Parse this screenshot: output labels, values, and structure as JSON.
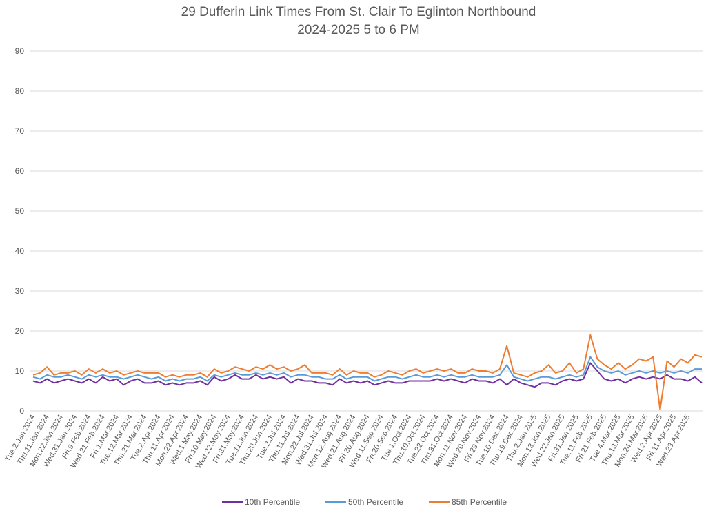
{
  "chart_data": {
    "type": "line",
    "title": "29 Dufferin Link Times From St. Clair To Eglinton Northbound",
    "subtitle": "2024-2025 5 to 6 PM",
    "xlabel": "",
    "ylabel": "",
    "ylim": [
      0,
      90
    ],
    "yticks": [
      0,
      10,
      20,
      30,
      40,
      50,
      60,
      70,
      80,
      90
    ],
    "grid": true,
    "legend_position": "bottom",
    "x_tick_labels": [
      "Tue.2.Jan.2024",
      "Thu.11.Jan.2024",
      "Mon.22.Jan.2024",
      "Wed.31.Jan.2024",
      "Fri.9.Feb.2024",
      "Wed.21.Feb.2024",
      "Fri.1.Mar.2024",
      "Tue.12.Mar.2024",
      "Thu.21.Mar.2024",
      "Tue.2.Apr.2024",
      "Thu.11.Apr.2024",
      "Mon.22.Apr.2024",
      "Wed.1.May.2024",
      "Fri.10.May.2024",
      "Wed.22.May.2024",
      "Fri.31.May.2024",
      "Tue.11.Jun.2024",
      "Thu.20.Jun.2024",
      "Tue.2.Jul.2024",
      "Thu.11.Jul.2024",
      "Mon.22.Jul.2024",
      "Wed.31.Jul.2024",
      "Mon.12.Aug.2024",
      "Wed.21.Aug.2024",
      "Fri.30.Aug.2024",
      "Wed.11.Sep.2024",
      "Fri.20.Sep.2024",
      "Tue.1.Oct.2024",
      "Thu.10.Oct.2024",
      "Tue.22.Oct.2024",
      "Thu.31.Oct.2024",
      "Mon.11.Nov.2024",
      "Wed.20.Nov.2024",
      "Fri.29.Nov.2024",
      "Tue.10.Dec.2024",
      "Thu.19.Dec.2024",
      "Thu.2.Jan.2025",
      "Mon.13.Jan.2025",
      "Wed.22.Jan.2025",
      "Fri.31.Jan.2025",
      "Tue.11.Feb.2025",
      "Fri.21.Feb.2025",
      "Tue.4.Mar.2025",
      "Thu.13.Mar.2025",
      "Mon.24.Mar.2025",
      "Wed.2.Apr.2025",
      "Fri.11.Apr.2025",
      "Wed.23.Apr.2025"
    ],
    "points_per_tick_label": 2,
    "series": [
      {
        "name": "10th Percentile",
        "color": "#7030a0",
        "values": [
          7.5,
          7.0,
          8.0,
          7.0,
          7.5,
          8.0,
          7.5,
          7.0,
          8.0,
          7.0,
          8.5,
          7.5,
          8.0,
          6.5,
          7.5,
          8.0,
          7.0,
          7.0,
          7.5,
          6.5,
          7.0,
          6.5,
          7.0,
          7.0,
          7.5,
          6.5,
          8.5,
          7.5,
          8.0,
          9.0,
          8.0,
          8.0,
          9.0,
          8.0,
          8.5,
          8.0,
          8.5,
          7.0,
          8.0,
          7.5,
          7.5,
          7.0,
          7.0,
          6.5,
          8.0,
          7.0,
          7.5,
          7.0,
          7.5,
          6.5,
          7.0,
          7.5,
          7.0,
          7.0,
          7.5,
          7.5,
          7.5,
          7.5,
          8.0,
          7.5,
          8.0,
          7.5,
          7.0,
          8.0,
          7.5,
          7.5,
          7.0,
          8.0,
          6.5,
          8.0,
          7.0,
          6.5,
          6.0,
          7.0,
          7.0,
          6.5,
          7.5,
          8.0,
          7.5,
          8.0,
          12.0,
          10.0,
          8.0,
          7.5,
          8.0,
          7.0,
          8.0,
          8.5,
          8.0,
          8.5,
          8.0,
          9.0,
          8.0,
          8.0,
          7.5,
          8.5,
          7.0
        ]
      },
      {
        "name": "50th Percentile",
        "color": "#5b9bd5",
        "values": [
          8.5,
          8.0,
          9.0,
          8.5,
          8.5,
          9.0,
          8.5,
          8.0,
          9.0,
          8.5,
          9.0,
          8.5,
          8.5,
          8.0,
          8.5,
          9.0,
          8.5,
          8.0,
          8.5,
          7.5,
          8.0,
          7.5,
          8.0,
          8.0,
          8.5,
          7.5,
          9.0,
          8.5,
          9.0,
          9.5,
          9.0,
          9.0,
          9.5,
          9.0,
          9.5,
          9.0,
          9.5,
          8.5,
          9.0,
          9.0,
          8.5,
          8.5,
          8.0,
          8.0,
          9.0,
          8.0,
          8.5,
          8.5,
          8.5,
          7.5,
          8.0,
          8.5,
          8.5,
          8.0,
          8.5,
          9.0,
          8.5,
          8.5,
          9.0,
          8.5,
          9.0,
          8.5,
          8.5,
          9.0,
          8.5,
          8.5,
          8.5,
          9.0,
          11.5,
          8.5,
          8.0,
          7.5,
          8.0,
          8.5,
          8.5,
          8.0,
          8.5,
          9.0,
          8.5,
          9.0,
          13.5,
          11.0,
          10.0,
          9.5,
          10.0,
          9.0,
          9.5,
          10.0,
          9.5,
          10.0,
          9.5,
          10.0,
          9.5,
          10.0,
          9.5,
          10.5,
          10.5
        ]
      },
      {
        "name": "85th Percentile",
        "color": "#ed7d31",
        "values": [
          9.0,
          9.5,
          11.0,
          9.0,
          9.5,
          9.5,
          10.0,
          9.0,
          10.5,
          9.5,
          10.5,
          9.5,
          10.0,
          9.0,
          9.5,
          10.0,
          9.5,
          9.5,
          9.5,
          8.5,
          9.0,
          8.5,
          9.0,
          9.0,
          9.5,
          8.5,
          10.5,
          9.5,
          10.0,
          11.0,
          10.5,
          10.0,
          11.0,
          10.5,
          11.5,
          10.5,
          11.0,
          10.0,
          10.5,
          11.5,
          9.5,
          9.5,
          9.5,
          9.0,
          10.5,
          9.0,
          10.0,
          9.5,
          9.5,
          8.5,
          9.0,
          10.0,
          9.5,
          9.0,
          10.0,
          10.5,
          9.5,
          10.0,
          10.5,
          10.0,
          10.5,
          9.5,
          9.5,
          10.5,
          10.0,
          10.0,
          9.5,
          10.5,
          16.3,
          9.5,
          9.0,
          8.5,
          9.5,
          10.0,
          11.5,
          9.5,
          10.0,
          12.0,
          9.5,
          10.5,
          19.0,
          13.0,
          11.5,
          10.5,
          12.0,
          10.5,
          11.5,
          13.0,
          12.5,
          13.5,
          0.3,
          12.5,
          11.0,
          13.0,
          12.0,
          14.0,
          13.5
        ]
      }
    ]
  }
}
